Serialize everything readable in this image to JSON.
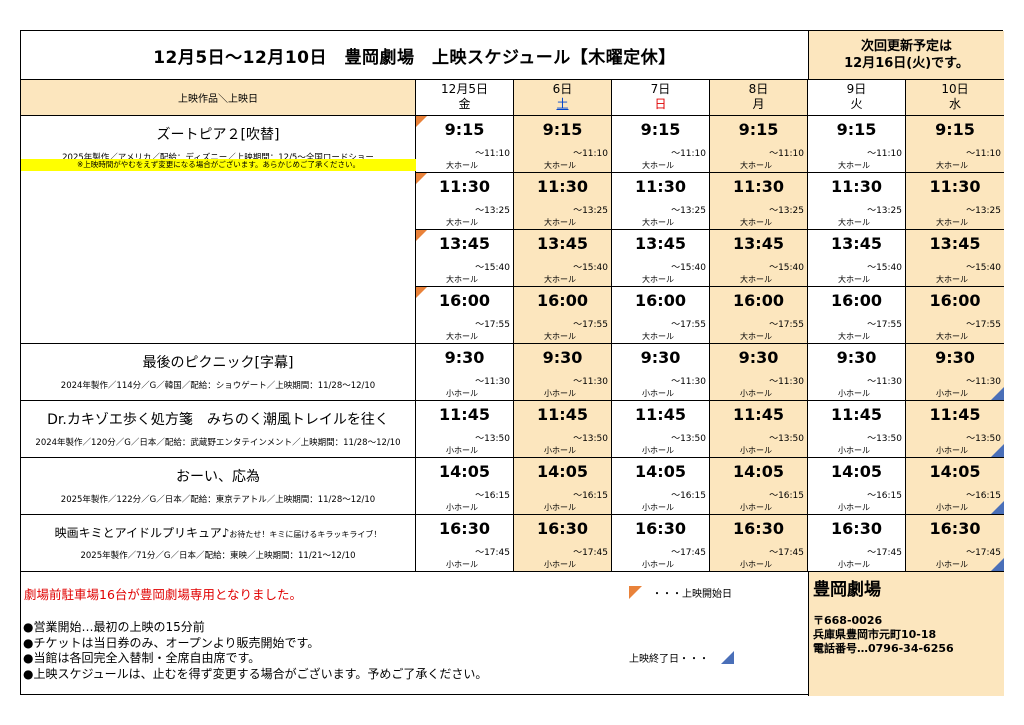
{
  "header": {
    "title": "12月5日～12月10日　豊岡劇場　上映スケジュール【木曜定休】",
    "next_update_line1": "次回更新予定は",
    "next_update_line2": "12月16日(火)です。"
  },
  "columns": {
    "title_header": "上映作品＼上映日",
    "days": [
      {
        "date": "12月5日",
        "weekday": "金"
      },
      {
        "date": "6日",
        "weekday": "土"
      },
      {
        "date": "7日",
        "weekday": "日"
      },
      {
        "date": "8日",
        "weekday": "月"
      },
      {
        "date": "9日",
        "weekday": "火"
      },
      {
        "date": "10日",
        "weekday": "水"
      }
    ]
  },
  "movies": [
    {
      "title": "ズートピア２[吹替]",
      "info": "2025年製作／アメリカ／配給：ディズニー／上映期間：12/5～全国ロードショー",
      "note": "※上映時間がやむをえず変更になる場合がございます。あらかじめご了承ください。",
      "shows": [
        {
          "start": "9:15",
          "end": "～11:10",
          "hall": "大ホール"
        },
        {
          "start": "11:30",
          "end": "～13:25",
          "hall": "大ホール"
        },
        {
          "start": "13:45",
          "end": "～15:40",
          "hall": "大ホール"
        },
        {
          "start": "16:00",
          "end": "～17:55",
          "hall": "大ホール"
        }
      ]
    },
    {
      "title": "最後のピクニック[字幕]",
      "info": "2024年製作／114分／G／韓国／配給：ショウゲート／上映期間：11/28～12/10",
      "shows": [
        {
          "start": "9:30",
          "end": "～11:30",
          "hall": "小ホール"
        }
      ]
    },
    {
      "title": "Dr.カキゾエ歩く処方箋　みちのく潮風トレイルを往く",
      "info": "2024年製作／120分／G／日本／配給：武蔵野エンタテインメント／上映期間：11/28～12/10",
      "shows": [
        {
          "start": "11:45",
          "end": "～13:50",
          "hall": "小ホール"
        }
      ]
    },
    {
      "title": "おーい、応為",
      "info": "2025年製作／122分／G／日本／配給：東京テアトル／上映期間：11/28～12/10",
      "shows": [
        {
          "start": "14:05",
          "end": "～16:15",
          "hall": "小ホール"
        }
      ]
    },
    {
      "title": "映画キミとアイドルプリキュア♪",
      "subtitle": "お待たせ！キミに届けるキラッキライブ！",
      "info": "2025年製作／71分／G／日本／配給：東映／上映期間：11/21～12/10",
      "shows": [
        {
          "start": "16:30",
          "end": "～17:45",
          "hall": "小ホール"
        }
      ]
    }
  ],
  "footer": {
    "parking": "劇場前駐車場16台が豊岡劇場専用となりました。",
    "notes": [
      "●営業開始…最初の上映の15分前",
      "●チケットは当日券のみ、オープンより販売開始です。",
      "●当館は各回完全入替制・全席自由席です。",
      "●上映スケジュールは、止むを得ず変更する場合がございます。予めご了承ください。"
    ],
    "legend_start": "・・・上映開始日",
    "legend_end": "上映終了日・・・",
    "theater_name": "豊岡劇場",
    "postal": "〒668-0026",
    "address": "兵庫県豊岡市元町10-18",
    "phone": "電話番号…0796-34-6256"
  },
  "colors": {
    "shade": "#FCE6BE",
    "start_marker": "#E9823A",
    "end_marker": "#4A6FB8",
    "note_highlight": "#FFFF00",
    "parking_text": "#E00000"
  }
}
